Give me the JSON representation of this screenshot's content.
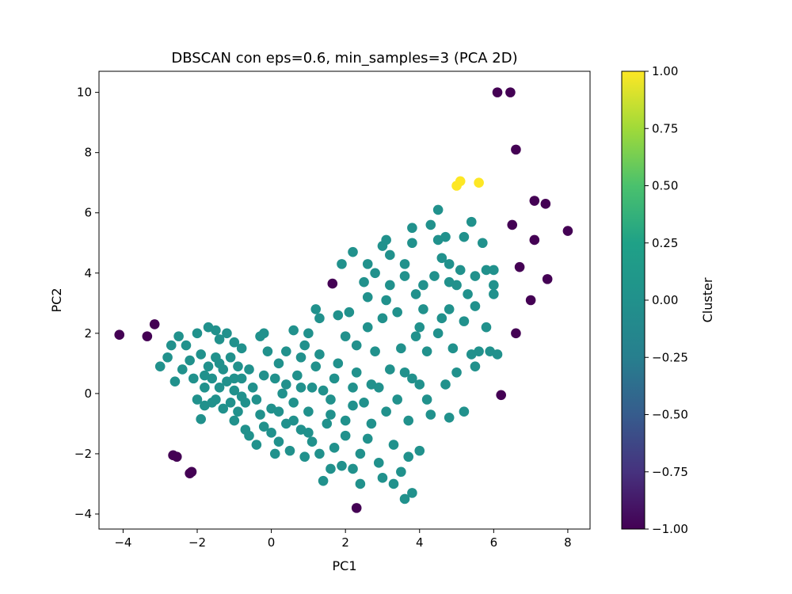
{
  "chart_data": {
    "type": "scatter",
    "title": "DBSCAN con eps=0.6, min_samples=3 (PCA 2D)",
    "xlabel": "PC1",
    "ylabel": "PC2",
    "xlim": [
      -4.65,
      8.6
    ],
    "ylim": [
      -4.5,
      10.7
    ],
    "xticks": [
      -4,
      -2,
      0,
      2,
      4,
      6,
      8
    ],
    "xtick_labels": [
      "−4",
      "−2",
      "0",
      "2",
      "4",
      "6",
      "8"
    ],
    "yticks": [
      -4,
      -2,
      0,
      2,
      4,
      6,
      8,
      10
    ],
    "ytick_labels": [
      "−4",
      "−2",
      "0",
      "2",
      "4",
      "6",
      "8",
      "10"
    ],
    "grid": false,
    "colorbar": {
      "label": "Cluster",
      "colormap": "viridis",
      "range": [
        -1.0,
        1.0
      ],
      "ticks": [
        -1.0,
        -0.75,
        -0.5,
        -0.25,
        0.0,
        0.25,
        0.5,
        0.75,
        1.0
      ],
      "tick_labels": [
        "−1.00",
        "−0.75",
        "−0.50",
        "−0.25",
        "0.00",
        "0.25",
        "0.50",
        "0.75",
        "1.00"
      ]
    },
    "cluster_colors": {
      "-1": "#440154",
      "0": "#21918c",
      "1": "#fde725"
    },
    "points": [
      {
        "x": -4.1,
        "y": 1.95,
        "cluster": -1
      },
      {
        "x": -3.35,
        "y": 1.9,
        "cluster": -1
      },
      {
        "x": -3.15,
        "y": 2.3,
        "cluster": -1
      },
      {
        "x": -2.65,
        "y": -2.05,
        "cluster": -1
      },
      {
        "x": -2.55,
        "y": -2.1,
        "cluster": -1
      },
      {
        "x": -2.2,
        "y": -2.65,
        "cluster": -1
      },
      {
        "x": -2.15,
        "y": -2.6,
        "cluster": -1
      },
      {
        "x": 1.65,
        "y": 3.65,
        "cluster": -1
      },
      {
        "x": 2.3,
        "y": -3.8,
        "cluster": -1
      },
      {
        "x": 6.1,
        "y": 10.0,
        "cluster": -1
      },
      {
        "x": 6.45,
        "y": 10.0,
        "cluster": -1
      },
      {
        "x": 6.6,
        "y": 8.1,
        "cluster": -1
      },
      {
        "x": 6.5,
        "y": 5.6,
        "cluster": -1
      },
      {
        "x": 7.1,
        "y": 6.4,
        "cluster": -1
      },
      {
        "x": 7.4,
        "y": 6.3,
        "cluster": -1
      },
      {
        "x": 8.0,
        "y": 5.4,
        "cluster": -1
      },
      {
        "x": 7.1,
        "y": 5.1,
        "cluster": -1
      },
      {
        "x": 6.7,
        "y": 4.2,
        "cluster": -1
      },
      {
        "x": 7.45,
        "y": 3.8,
        "cluster": -1
      },
      {
        "x": 7.0,
        "y": 3.1,
        "cluster": -1
      },
      {
        "x": 6.6,
        "y": 2.0,
        "cluster": -1
      },
      {
        "x": 6.2,
        "y": -0.05,
        "cluster": -1
      },
      {
        "x": 5.0,
        "y": 6.9,
        "cluster": 1
      },
      {
        "x": 5.1,
        "y": 7.05,
        "cluster": 1
      },
      {
        "x": 5.6,
        "y": 7.0,
        "cluster": 1
      },
      {
        "x": -3.0,
        "y": 0.9,
        "cluster": 0
      },
      {
        "x": -2.8,
        "y": 1.2,
        "cluster": 0
      },
      {
        "x": -2.7,
        "y": 1.6,
        "cluster": 0
      },
      {
        "x": -2.5,
        "y": 1.9,
        "cluster": 0
      },
      {
        "x": -2.3,
        "y": 1.6,
        "cluster": 0
      },
      {
        "x": -2.6,
        "y": 0.4,
        "cluster": 0
      },
      {
        "x": -2.4,
        "y": 0.8,
        "cluster": 0
      },
      {
        "x": -2.2,
        "y": 1.1,
        "cluster": 0
      },
      {
        "x": -2.0,
        "y": 2.0,
        "cluster": 0
      },
      {
        "x": -1.7,
        "y": 2.2,
        "cluster": 0
      },
      {
        "x": -1.5,
        "y": 2.1,
        "cluster": 0
      },
      {
        "x": -1.4,
        "y": 1.8,
        "cluster": 0
      },
      {
        "x": -1.2,
        "y": 2.0,
        "cluster": 0
      },
      {
        "x": -1.0,
        "y": 1.7,
        "cluster": 0
      },
      {
        "x": -0.8,
        "y": 1.5,
        "cluster": 0
      },
      {
        "x": -1.9,
        "y": 1.3,
        "cluster": 0
      },
      {
        "x": -1.7,
        "y": 0.9,
        "cluster": 0
      },
      {
        "x": -1.5,
        "y": 1.2,
        "cluster": 0
      },
      {
        "x": -1.3,
        "y": 0.8,
        "cluster": 0
      },
      {
        "x": -1.1,
        "y": 1.2,
        "cluster": 0
      },
      {
        "x": -0.9,
        "y": 0.9,
        "cluster": 0
      },
      {
        "x": -2.1,
        "y": 0.5,
        "cluster": 0
      },
      {
        "x": -1.8,
        "y": 0.2,
        "cluster": 0
      },
      {
        "x": -1.6,
        "y": 0.5,
        "cluster": 0
      },
      {
        "x": -1.4,
        "y": 0.2,
        "cluster": 0
      },
      {
        "x": -1.2,
        "y": 0.4,
        "cluster": 0
      },
      {
        "x": -1.0,
        "y": 0.1,
        "cluster": 0
      },
      {
        "x": -0.8,
        "y": 0.5,
        "cluster": 0
      },
      {
        "x": -0.6,
        "y": 0.8,
        "cluster": 0
      },
      {
        "x": -2.0,
        "y": -0.2,
        "cluster": 0
      },
      {
        "x": -1.8,
        "y": -0.4,
        "cluster": 0
      },
      {
        "x": -1.5,
        "y": -0.2,
        "cluster": 0
      },
      {
        "x": -1.3,
        "y": -0.5,
        "cluster": 0
      },
      {
        "x": -1.1,
        "y": -0.3,
        "cluster": 0
      },
      {
        "x": -0.9,
        "y": -0.6,
        "cluster": 0
      },
      {
        "x": -0.7,
        "y": -0.3,
        "cluster": 0
      },
      {
        "x": -0.5,
        "y": 0.2,
        "cluster": 0
      },
      {
        "x": -0.4,
        "y": -0.2,
        "cluster": 0
      },
      {
        "x": -1.9,
        "y": -0.85,
        "cluster": 0
      },
      {
        "x": -1.0,
        "y": -0.9,
        "cluster": 0
      },
      {
        "x": -0.7,
        "y": -1.2,
        "cluster": 0
      },
      {
        "x": -0.6,
        "y": -1.4,
        "cluster": 0
      },
      {
        "x": -0.3,
        "y": -0.7,
        "cluster": 0
      },
      {
        "x": -0.2,
        "y": -1.1,
        "cluster": 0
      },
      {
        "x": 0.0,
        "y": -0.5,
        "cluster": 0
      },
      {
        "x": -0.3,
        "y": 1.9,
        "cluster": 0
      },
      {
        "x": -0.2,
        "y": 2.0,
        "cluster": 0
      },
      {
        "x": -0.1,
        "y": 1.4,
        "cluster": 0
      },
      {
        "x": 0.2,
        "y": 1.0,
        "cluster": 0
      },
      {
        "x": 0.4,
        "y": 1.4,
        "cluster": 0
      },
      {
        "x": 0.1,
        "y": 0.5,
        "cluster": 0
      },
      {
        "x": 0.3,
        "y": 0.0,
        "cluster": 0
      },
      {
        "x": 0.0,
        "y": -1.3,
        "cluster": 0
      },
      {
        "x": 0.2,
        "y": -1.6,
        "cluster": 0
      },
      {
        "x": 0.4,
        "y": -1.0,
        "cluster": 0
      },
      {
        "x": 0.5,
        "y": -1.9,
        "cluster": 0
      },
      {
        "x": 0.6,
        "y": -0.3,
        "cluster": 0
      },
      {
        "x": 0.7,
        "y": 0.6,
        "cluster": 0
      },
      {
        "x": 0.8,
        "y": 1.2,
        "cluster": 0
      },
      {
        "x": 0.9,
        "y": 1.6,
        "cluster": 0
      },
      {
        "x": 0.6,
        "y": 2.1,
        "cluster": 0
      },
      {
        "x": 1.0,
        "y": 2.0,
        "cluster": 0
      },
      {
        "x": 0.8,
        "y": -1.2,
        "cluster": 0
      },
      {
        "x": 1.0,
        "y": -0.6,
        "cluster": 0
      },
      {
        "x": 1.1,
        "y": 0.2,
        "cluster": 0
      },
      {
        "x": 1.2,
        "y": 0.9,
        "cluster": 0
      },
      {
        "x": 1.3,
        "y": 1.3,
        "cluster": 0
      },
      {
        "x": 1.1,
        "y": -1.6,
        "cluster": 0
      },
      {
        "x": 0.9,
        "y": -2.1,
        "cluster": 0
      },
      {
        "x": 1.3,
        "y": -2.0,
        "cluster": 0
      },
      {
        "x": 1.2,
        "y": 2.8,
        "cluster": 0
      },
      {
        "x": 1.3,
        "y": 2.5,
        "cluster": 0
      },
      {
        "x": 1.4,
        "y": -2.9,
        "cluster": 0
      },
      {
        "x": 1.5,
        "y": -1.0,
        "cluster": 0
      },
      {
        "x": 1.6,
        "y": -0.2,
        "cluster": 0
      },
      {
        "x": 1.7,
        "y": 0.5,
        "cluster": 0
      },
      {
        "x": 1.8,
        "y": 1.0,
        "cluster": 0
      },
      {
        "x": 1.8,
        "y": 2.6,
        "cluster": 0
      },
      {
        "x": 1.9,
        "y": 4.3,
        "cluster": 0
      },
      {
        "x": 1.7,
        "y": -1.8,
        "cluster": 0
      },
      {
        "x": 1.9,
        "y": -2.4,
        "cluster": 0
      },
      {
        "x": 2.0,
        "y": -1.4,
        "cluster": 0
      },
      {
        "x": 2.0,
        "y": 1.9,
        "cluster": 0
      },
      {
        "x": 2.1,
        "y": 2.7,
        "cluster": 0
      },
      {
        "x": 2.2,
        "y": 4.7,
        "cluster": 0
      },
      {
        "x": 2.2,
        "y": -0.4,
        "cluster": 0
      },
      {
        "x": 2.3,
        "y": 0.7,
        "cluster": 0
      },
      {
        "x": 2.3,
        "y": 1.6,
        "cluster": 0
      },
      {
        "x": 2.4,
        "y": -2.0,
        "cluster": 0
      },
      {
        "x": 2.4,
        "y": -3.0,
        "cluster": 0
      },
      {
        "x": 2.5,
        "y": 3.7,
        "cluster": 0
      },
      {
        "x": 2.6,
        "y": 4.3,
        "cluster": 0
      },
      {
        "x": 2.6,
        "y": 2.2,
        "cluster": 0
      },
      {
        "x": 2.6,
        "y": 3.2,
        "cluster": 0
      },
      {
        "x": 2.7,
        "y": -1.0,
        "cluster": 0
      },
      {
        "x": 2.7,
        "y": 0.3,
        "cluster": 0
      },
      {
        "x": 2.8,
        "y": 1.4,
        "cluster": 0
      },
      {
        "x": 2.8,
        "y": 4.0,
        "cluster": 0
      },
      {
        "x": 2.9,
        "y": -2.3,
        "cluster": 0
      },
      {
        "x": 3.0,
        "y": 4.9,
        "cluster": 0
      },
      {
        "x": 3.0,
        "y": 2.5,
        "cluster": 0
      },
      {
        "x": 3.1,
        "y": 5.1,
        "cluster": 0
      },
      {
        "x": 3.1,
        "y": 3.1,
        "cluster": 0
      },
      {
        "x": 3.1,
        "y": -0.6,
        "cluster": 0
      },
      {
        "x": 3.2,
        "y": 0.8,
        "cluster": 0
      },
      {
        "x": 3.2,
        "y": 4.6,
        "cluster": 0
      },
      {
        "x": 3.2,
        "y": 3.6,
        "cluster": 0
      },
      {
        "x": 3.3,
        "y": -1.7,
        "cluster": 0
      },
      {
        "x": 3.3,
        "y": -3.0,
        "cluster": 0
      },
      {
        "x": 3.4,
        "y": 2.7,
        "cluster": 0
      },
      {
        "x": 3.5,
        "y": 1.5,
        "cluster": 0
      },
      {
        "x": 3.6,
        "y": 4.3,
        "cluster": 0
      },
      {
        "x": 3.6,
        "y": 3.9,
        "cluster": 0
      },
      {
        "x": 3.6,
        "y": -3.5,
        "cluster": 0
      },
      {
        "x": 3.7,
        "y": -2.1,
        "cluster": 0
      },
      {
        "x": 3.7,
        "y": -0.9,
        "cluster": 0
      },
      {
        "x": 3.8,
        "y": 5.5,
        "cluster": 0
      },
      {
        "x": 3.8,
        "y": 5.0,
        "cluster": 0
      },
      {
        "x": 3.8,
        "y": 0.5,
        "cluster": 0
      },
      {
        "x": 3.9,
        "y": 3.3,
        "cluster": 0
      },
      {
        "x": 3.9,
        "y": 1.9,
        "cluster": 0
      },
      {
        "x": 4.0,
        "y": 2.2,
        "cluster": 0
      },
      {
        "x": 4.0,
        "y": -1.9,
        "cluster": 0
      },
      {
        "x": 4.1,
        "y": 2.8,
        "cluster": 0
      },
      {
        "x": 4.1,
        "y": 3.6,
        "cluster": 0
      },
      {
        "x": 4.2,
        "y": 1.4,
        "cluster": 0
      },
      {
        "x": 4.3,
        "y": 5.6,
        "cluster": 0
      },
      {
        "x": 4.3,
        "y": -0.7,
        "cluster": 0
      },
      {
        "x": 4.4,
        "y": 3.9,
        "cluster": 0
      },
      {
        "x": 4.5,
        "y": 5.1,
        "cluster": 0
      },
      {
        "x": 4.5,
        "y": 2.0,
        "cluster": 0
      },
      {
        "x": 4.5,
        "y": 6.1,
        "cluster": 0
      },
      {
        "x": 4.6,
        "y": 4.5,
        "cluster": 0
      },
      {
        "x": 4.6,
        "y": 2.5,
        "cluster": 0
      },
      {
        "x": 4.7,
        "y": 5.2,
        "cluster": 0
      },
      {
        "x": 4.7,
        "y": 0.3,
        "cluster": 0
      },
      {
        "x": 4.8,
        "y": 3.7,
        "cluster": 0
      },
      {
        "x": 4.8,
        "y": 4.3,
        "cluster": 0
      },
      {
        "x": 4.8,
        "y": 2.8,
        "cluster": 0
      },
      {
        "x": 4.8,
        "y": -0.8,
        "cluster": 0
      },
      {
        "x": 4.9,
        "y": 1.5,
        "cluster": 0
      },
      {
        "x": 5.0,
        "y": 3.6,
        "cluster": 0
      },
      {
        "x": 5.0,
        "y": 0.7,
        "cluster": 0
      },
      {
        "x": 5.1,
        "y": 4.1,
        "cluster": 0
      },
      {
        "x": 5.2,
        "y": 2.4,
        "cluster": 0
      },
      {
        "x": 5.2,
        "y": 5.2,
        "cluster": 0
      },
      {
        "x": 5.2,
        "y": -0.6,
        "cluster": 0
      },
      {
        "x": 5.3,
        "y": 3.3,
        "cluster": 0
      },
      {
        "x": 5.4,
        "y": 5.7,
        "cluster": 0
      },
      {
        "x": 5.4,
        "y": 1.3,
        "cluster": 0
      },
      {
        "x": 5.5,
        "y": 2.9,
        "cluster": 0
      },
      {
        "x": 5.5,
        "y": 3.9,
        "cluster": 0
      },
      {
        "x": 5.5,
        "y": 0.9,
        "cluster": 0
      },
      {
        "x": 5.6,
        "y": 1.4,
        "cluster": 0
      },
      {
        "x": 5.7,
        "y": 5.0,
        "cluster": 0
      },
      {
        "x": 5.8,
        "y": 4.1,
        "cluster": 0
      },
      {
        "x": 5.8,
        "y": 2.2,
        "cluster": 0
      },
      {
        "x": 5.9,
        "y": 1.4,
        "cluster": 0
      },
      {
        "x": 6.0,
        "y": 4.1,
        "cluster": 0
      },
      {
        "x": 6.0,
        "y": 3.6,
        "cluster": 0
      },
      {
        "x": 6.0,
        "y": 3.3,
        "cluster": 0
      },
      {
        "x": 6.1,
        "y": 1.3,
        "cluster": 0
      },
      {
        "x": -1.8,
        "y": 0.6,
        "cluster": 0
      },
      {
        "x": -1.4,
        "y": 1.0,
        "cluster": 0
      },
      {
        "x": -1.6,
        "y": -0.3,
        "cluster": 0
      },
      {
        "x": -1.0,
        "y": 0.5,
        "cluster": 0
      },
      {
        "x": -0.8,
        "y": -0.1,
        "cluster": 0
      },
      {
        "x": -0.2,
        "y": 0.6,
        "cluster": 0
      },
      {
        "x": 0.2,
        "y": -0.6,
        "cluster": 0
      },
      {
        "x": 0.4,
        "y": 0.3,
        "cluster": 0
      },
      {
        "x": 0.6,
        "y": -0.9,
        "cluster": 0
      },
      {
        "x": 0.8,
        "y": 0.2,
        "cluster": 0
      },
      {
        "x": 1.4,
        "y": 0.1,
        "cluster": 0
      },
      {
        "x": 1.6,
        "y": -0.7,
        "cluster": 0
      },
      {
        "x": 2.0,
        "y": -0.9,
        "cluster": 0
      },
      {
        "x": 2.2,
        "y": 0.2,
        "cluster": 0
      },
      {
        "x": 2.5,
        "y": -0.3,
        "cluster": 0
      },
      {
        "x": 2.9,
        "y": 0.2,
        "cluster": 0
      },
      {
        "x": 3.4,
        "y": -0.2,
        "cluster": 0
      },
      {
        "x": 3.6,
        "y": 0.7,
        "cluster": 0
      },
      {
        "x": 4.0,
        "y": 0.3,
        "cluster": 0
      },
      {
        "x": 4.2,
        "y": -0.2,
        "cluster": 0
      },
      {
        "x": 2.6,
        "y": -1.5,
        "cluster": 0
      },
      {
        "x": 2.2,
        "y": -2.5,
        "cluster": 0
      },
      {
        "x": 3.0,
        "y": -2.8,
        "cluster": 0
      },
      {
        "x": 3.5,
        "y": -2.6,
        "cluster": 0
      },
      {
        "x": 3.8,
        "y": -3.3,
        "cluster": 0
      },
      {
        "x": 0.1,
        "y": -2.0,
        "cluster": 0
      },
      {
        "x": -0.4,
        "y": -1.7,
        "cluster": 0
      },
      {
        "x": 1.6,
        "y": -2.5,
        "cluster": 0
      },
      {
        "x": 1.0,
        "y": -1.3,
        "cluster": 0
      }
    ]
  }
}
